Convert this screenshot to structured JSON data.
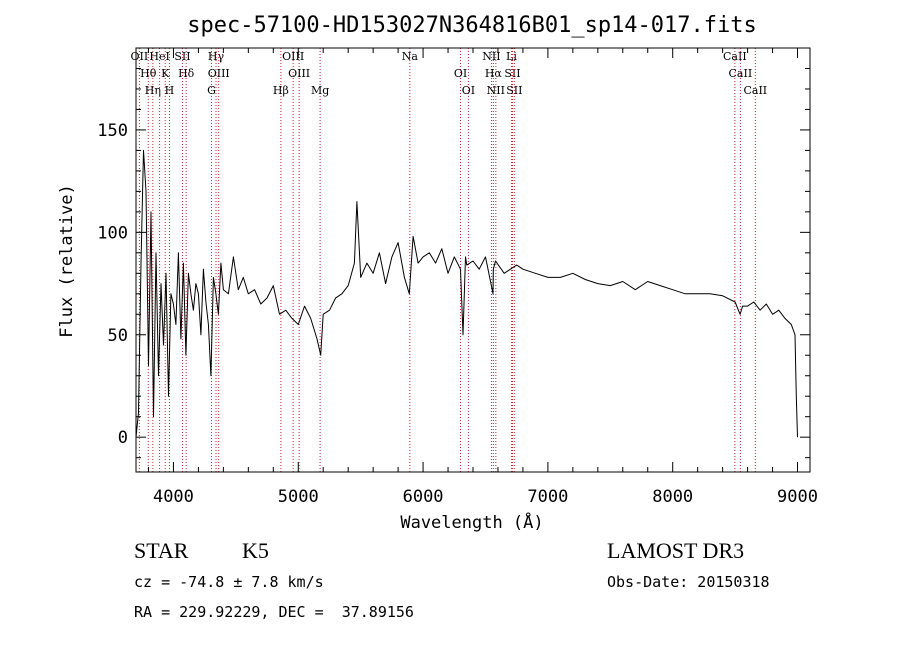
{
  "chart_data": {
    "type": "line",
    "title": "spec-57100-HD153027N364816B01_sp14-017.fits",
    "xlabel": "Wavelength (Å)",
    "ylabel": "Flux (relative)",
    "xlim": [
      3700,
      9100
    ],
    "ylim": [
      -17,
      190
    ],
    "xticks": [
      4000,
      5000,
      6000,
      7000,
      8000,
      9000
    ],
    "yticks": [
      0,
      50,
      100,
      150
    ],
    "series": [
      {
        "name": "flux",
        "x": [
          3700,
          3720,
          3740,
          3760,
          3780,
          3800,
          3820,
          3840,
          3860,
          3880,
          3900,
          3920,
          3940,
          3960,
          3980,
          4000,
          4020,
          4040,
          4060,
          4080,
          4100,
          4120,
          4140,
          4160,
          4180,
          4200,
          4220,
          4240,
          4260,
          4280,
          4300,
          4320,
          4340,
          4360,
          4380,
          4400,
          4440,
          4480,
          4520,
          4560,
          4600,
          4650,
          4700,
          4750,
          4800,
          4850,
          4900,
          4950,
          5000,
          5050,
          5100,
          5150,
          5180,
          5200,
          5250,
          5300,
          5350,
          5400,
          5450,
          5470,
          5500,
          5550,
          5600,
          5650,
          5700,
          5750,
          5800,
          5850,
          5890,
          5920,
          5960,
          6000,
          6050,
          6100,
          6150,
          6200,
          6250,
          6300,
          6320,
          6340,
          6350,
          6400,
          6450,
          6500,
          6560,
          6563,
          6580,
          6650,
          6700,
          6750,
          6800,
          6900,
          7000,
          7100,
          7200,
          7300,
          7400,
          7500,
          7600,
          7700,
          7800,
          7900,
          8000,
          8100,
          8200,
          8300,
          8400,
          8500,
          8540,
          8560,
          8600,
          8650,
          8700,
          8750,
          8800,
          8850,
          8900,
          8950,
          8980,
          8990,
          9000
        ],
        "values": [
          0,
          12,
          85,
          140,
          120,
          35,
          110,
          10,
          90,
          30,
          75,
          45,
          80,
          20,
          70,
          65,
          55,
          90,
          48,
          85,
          40,
          80,
          70,
          62,
          75,
          70,
          50,
          82,
          66,
          55,
          30,
          78,
          70,
          60,
          85,
          72,
          70,
          88,
          72,
          78,
          70,
          72,
          65,
          68,
          74,
          60,
          62,
          58,
          55,
          64,
          58,
          48,
          40,
          60,
          62,
          68,
          70,
          74,
          85,
          115,
          78,
          85,
          80,
          90,
          75,
          88,
          95,
          78,
          70,
          98,
          85,
          88,
          90,
          85,
          92,
          80,
          88,
          82,
          50,
          88,
          84,
          86,
          82,
          88,
          70,
          82,
          86,
          80,
          82,
          84,
          82,
          80,
          78,
          78,
          80,
          77,
          75,
          74,
          76,
          72,
          76,
          74,
          72,
          70,
          70,
          70,
          69,
          66,
          60,
          64,
          64,
          66,
          62,
          65,
          60,
          62,
          58,
          55,
          50,
          20,
          0
        ]
      }
    ],
    "line_markers": [
      {
        "label": "OII",
        "x": 3727
      },
      {
        "label": "Hθ",
        "x": 3798
      },
      {
        "label": "Hη",
        "x": 3835
      },
      {
        "label": "HeI",
        "x": 3889
      },
      {
        "label": "K",
        "x": 3934
      },
      {
        "label": "H",
        "x": 3968
      },
      {
        "label": "SII",
        "x": 4072
      },
      {
        "label": "Hδ",
        "x": 4102
      },
      {
        "label": "G",
        "x": 4305
      },
      {
        "label": "Hγ",
        "x": 4341
      },
      {
        "label": "OIII",
        "x": 4363
      },
      {
        "label": "Hβ",
        "x": 4861
      },
      {
        "label": "OIII",
        "x": 4959
      },
      {
        "label": "OIII",
        "x": 5007
      },
      {
        "label": "Mg",
        "x": 5175
      },
      {
        "label": "Na",
        "x": 5894
      },
      {
        "label": "OI",
        "x": 6300
      },
      {
        "label": "OI",
        "x": 6363
      },
      {
        "label": "NII",
        "x": 6548
      },
      {
        "label": "Hα",
        "x": 6563
      },
      {
        "label": "NII",
        "x": 6583
      },
      {
        "label": "Li",
        "x": 6708
      },
      {
        "label": "SII",
        "x": 6716
      },
      {
        "label": "SII",
        "x": 6731
      },
      {
        "label": "CaII",
        "x": 8498
      },
      {
        "label": "CaII",
        "x": 8542
      },
      {
        "label": "CaII",
        "x": 8662
      }
    ]
  },
  "info": {
    "object_class": "STAR",
    "subclass": "K5",
    "survey": "LAMOST DR3",
    "redshift": "cz = -74.8 ± 7.8 km/s",
    "obs_date": "Obs-Date: 20150318",
    "coords": "RA = 229.92229, DEC =  37.89156"
  },
  "colors": {
    "line_marker": "#cc2222",
    "spectrum": "#000000"
  }
}
